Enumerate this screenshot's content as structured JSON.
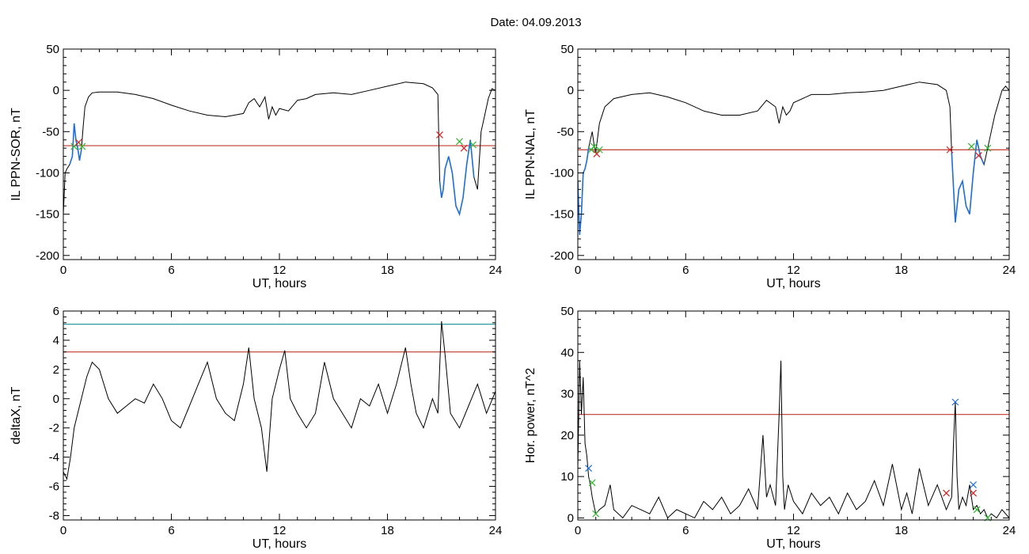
{
  "figure": {
    "title": "Date:  04.09.2013"
  },
  "colors": {
    "trace": "#000000",
    "highlight": "#1f6fd6",
    "threshold_red": "#c0392b",
    "threshold_teal": "#2a9d9a",
    "marker_green": "#2eb82e",
    "marker_red": "#d62020",
    "marker_blue": "#1f6fd6"
  },
  "chart_data": [
    {
      "type": "line",
      "id": "il-sor",
      "xlabel": "UT, hours",
      "ylabel": "IL PPN-SOR, nT",
      "xlim": [
        0,
        24
      ],
      "ylim": [
        -205,
        50
      ],
      "xticks": [
        0,
        6,
        12,
        18,
        24
      ],
      "yticks": [
        -200,
        -150,
        -100,
        -50,
        0,
        50
      ],
      "series": [
        {
          "role": "trace",
          "x": [
            0,
            0.1,
            0.2,
            0.35,
            0.5,
            0.6,
            0.7,
            0.8,
            0.9,
            1.0,
            1.1,
            1.2,
            1.4,
            1.6,
            2.0,
            3.0,
            4.0,
            5.0,
            6.0,
            7.0,
            8.0,
            9.0,
            9.5,
            10.0,
            10.3,
            10.6,
            10.9,
            11.2,
            11.4,
            11.6,
            11.8,
            12.0,
            12.5,
            13.0,
            13.5,
            14.0,
            15.0,
            16.0,
            17.0,
            18.0,
            19.0,
            20.0,
            20.5,
            20.8,
            20.9,
            21.0,
            21.1,
            21.2,
            21.4,
            21.6,
            21.8,
            22.0,
            22.2,
            22.4,
            22.6,
            22.8,
            23.0,
            23.2,
            23.4,
            23.6,
            23.8,
            24.0
          ],
          "y": [
            -150,
            -100,
            -95,
            -90,
            -80,
            -40,
            -60,
            -70,
            -85,
            -72,
            -45,
            -20,
            -8,
            -3,
            -2,
            -2,
            -5,
            -10,
            -18,
            -25,
            -30,
            -32,
            -30,
            -28,
            -15,
            -10,
            -20,
            -8,
            -35,
            -20,
            -30,
            -22,
            -25,
            -12,
            -10,
            -5,
            -3,
            -5,
            0,
            5,
            10,
            8,
            3,
            -5,
            -110,
            -130,
            -120,
            -95,
            -80,
            -100,
            -140,
            -150,
            -130,
            -90,
            -60,
            -105,
            -120,
            -50,
            -30,
            -10,
            2,
            0
          ]
        },
        {
          "role": "highlight",
          "x": [
            0.35,
            0.5,
            0.6,
            0.7,
            0.8,
            0.9,
            1.0
          ],
          "y": [
            -90,
            -80,
            -40,
            -60,
            -70,
            -85,
            -72
          ]
        },
        {
          "role": "highlight",
          "x": [
            20.9,
            21.0,
            21.1,
            21.2,
            21.4,
            21.6,
            21.8,
            22.0,
            22.2,
            22.4,
            22.6,
            22.8
          ],
          "y": [
            -110,
            -130,
            -120,
            -95,
            -80,
            -100,
            -140,
            -150,
            -130,
            -90,
            -60,
            -105
          ]
        }
      ],
      "hlines": [
        {
          "y": -67,
          "color": "threshold_red"
        }
      ],
      "markers": [
        {
          "x": 0.6,
          "y": -68,
          "color": "marker_green"
        },
        {
          "x": 0.85,
          "y": -63,
          "color": "marker_red"
        },
        {
          "x": 1.05,
          "y": -68,
          "color": "marker_green"
        },
        {
          "x": 20.9,
          "y": -54,
          "color": "marker_red"
        },
        {
          "x": 22.0,
          "y": -62,
          "color": "marker_green"
        },
        {
          "x": 22.25,
          "y": -70,
          "color": "marker_red"
        },
        {
          "x": 22.75,
          "y": -66,
          "color": "marker_green"
        }
      ]
    },
    {
      "type": "line",
      "id": "il-nal",
      "xlabel": "UT, hours",
      "ylabel": "IL PPN-NAL, nT",
      "xlim": [
        0,
        24
      ],
      "ylim": [
        -205,
        50
      ],
      "xticks": [
        0,
        6,
        12,
        18,
        24
      ],
      "yticks": [
        -200,
        -150,
        -100,
        -50,
        0,
        50
      ],
      "series": [
        {
          "role": "trace",
          "x": [
            0,
            0.1,
            0.2,
            0.3,
            0.4,
            0.5,
            0.6,
            0.7,
            0.8,
            0.9,
            1.0,
            1.2,
            1.5,
            2.0,
            3.0,
            4.0,
            5.0,
            6.0,
            7.0,
            8.0,
            9.0,
            10.0,
            10.5,
            11.0,
            11.2,
            11.4,
            11.6,
            11.8,
            12.0,
            13.0,
            14.0,
            15.0,
            16.0,
            17.0,
            18.0,
            19.0,
            20.0,
            20.5,
            20.7,
            20.8,
            21.0,
            21.2,
            21.4,
            21.6,
            21.8,
            22.0,
            22.2,
            22.4,
            22.6,
            22.8,
            23.0,
            23.2,
            23.4,
            23.6,
            23.8,
            24.0
          ],
          "y": [
            -110,
            -175,
            -150,
            -100,
            -95,
            -85,
            -70,
            -60,
            -50,
            -65,
            -75,
            -40,
            -20,
            -10,
            -5,
            -3,
            -8,
            -15,
            -25,
            -30,
            -30,
            -25,
            -12,
            -20,
            -40,
            -20,
            -30,
            -25,
            -15,
            -5,
            -5,
            -3,
            -2,
            0,
            5,
            10,
            7,
            0,
            -20,
            -75,
            -160,
            -120,
            -110,
            -140,
            -150,
            -100,
            -60,
            -80,
            -90,
            -70,
            -50,
            -30,
            -15,
            0,
            5,
            0
          ]
        },
        {
          "role": "highlight",
          "x": [
            0,
            0.1,
            0.2,
            0.3,
            0.4,
            0.5,
            0.6
          ],
          "y": [
            -110,
            -175,
            -150,
            -100,
            -95,
            -85,
            -70
          ]
        },
        {
          "role": "highlight",
          "x": [
            20.8,
            21.0,
            21.2,
            21.4,
            21.6,
            21.8,
            22.0,
            22.2,
            22.4,
            22.6
          ],
          "y": [
            -75,
            -160,
            -120,
            -110,
            -140,
            -150,
            -100,
            -60,
            -80,
            -90
          ]
        }
      ],
      "hlines": [
        {
          "y": -72,
          "color": "threshold_red"
        }
      ],
      "markers": [
        {
          "x": 0.75,
          "y": -72,
          "color": "marker_green"
        },
        {
          "x": 0.9,
          "y": -68,
          "color": "marker_green"
        },
        {
          "x": 1.05,
          "y": -77,
          "color": "marker_red"
        },
        {
          "x": 1.2,
          "y": -72,
          "color": "marker_green"
        },
        {
          "x": 20.7,
          "y": -72,
          "color": "marker_red"
        },
        {
          "x": 21.9,
          "y": -68,
          "color": "marker_green"
        },
        {
          "x": 22.3,
          "y": -79,
          "color": "marker_red"
        },
        {
          "x": 22.8,
          "y": -70,
          "color": "marker_green"
        }
      ]
    },
    {
      "type": "line",
      "id": "deltax",
      "xlabel": "UT, hours",
      "ylabel": "deltaX, nT",
      "xlim": [
        0,
        24
      ],
      "ylim": [
        -8.3,
        6
      ],
      "xticks": [
        0,
        6,
        12,
        18,
        24
      ],
      "yticks": [
        -8,
        -6,
        -4,
        -2,
        0,
        2,
        4,
        6
      ],
      "series": [
        {
          "role": "trace",
          "x": [
            0,
            0.2,
            0.4,
            0.6,
            0.8,
            1.0,
            1.3,
            1.6,
            2.0,
            2.5,
            3.0,
            3.5,
            4.0,
            4.5,
            5.0,
            5.5,
            6.0,
            6.5,
            7.0,
            7.5,
            8.0,
            8.5,
            9.0,
            9.5,
            10.0,
            10.3,
            10.6,
            11.0,
            11.3,
            11.6,
            12.0,
            12.3,
            12.6,
            13.0,
            13.5,
            14.0,
            14.5,
            15.0,
            15.5,
            16.0,
            16.5,
            17.0,
            17.5,
            18.0,
            18.5,
            19.0,
            19.3,
            19.6,
            20.0,
            20.5,
            20.8,
            21.0,
            21.2,
            21.5,
            22.0,
            22.5,
            23.0,
            23.5,
            24.0
          ],
          "y": [
            -5,
            -5.5,
            -4,
            -2,
            -1,
            0,
            1.5,
            2.5,
            2,
            0,
            -1,
            -0.5,
            0,
            -0.3,
            1,
            0,
            -1.5,
            -2,
            -0.5,
            1,
            2.5,
            0,
            -1,
            -1.5,
            1,
            3.5,
            0,
            -2,
            -5,
            0,
            2,
            3.3,
            0,
            -1,
            -2,
            -1,
            2.5,
            0,
            -1,
            -2,
            0,
            -0.5,
            1,
            -1,
            1,
            3.5,
            1,
            -1,
            -2,
            0,
            -1,
            5.3,
            3,
            -1,
            -2,
            -0.5,
            1,
            -1,
            0.5
          ]
        }
      ],
      "hlines": [
        {
          "y": 5.1,
          "color": "threshold_teal"
        },
        {
          "y": 3.2,
          "color": "threshold_red"
        }
      ],
      "markers": []
    },
    {
      "type": "line",
      "id": "hor-power",
      "xlabel": "UT, hours",
      "ylabel": "Hor. power, nT^2",
      "xlim": [
        0,
        24
      ],
      "ylim": [
        -0.5,
        50
      ],
      "xticks": [
        0,
        6,
        12,
        18,
        24
      ],
      "yticks": [
        0,
        10,
        20,
        30,
        40,
        50
      ],
      "series": [
        {
          "role": "trace",
          "x": [
            0,
            0.1,
            0.2,
            0.3,
            0.4,
            0.5,
            0.6,
            0.7,
            0.8,
            0.9,
            1.0,
            1.2,
            1.5,
            1.8,
            2.0,
            2.5,
            3.0,
            3.5,
            4.0,
            4.5,
            5.0,
            5.5,
            6.0,
            6.5,
            7.0,
            7.5,
            8.0,
            8.5,
            9.0,
            9.5,
            10.0,
            10.3,
            10.5,
            10.7,
            11.0,
            11.2,
            11.3,
            11.4,
            11.5,
            11.7,
            12.0,
            12.5,
            13.0,
            13.5,
            14.0,
            14.5,
            15.0,
            15.5,
            16.0,
            16.5,
            17.0,
            17.5,
            18.0,
            18.3,
            18.6,
            19.0,
            19.5,
            20.0,
            20.5,
            20.8,
            20.9,
            21.0,
            21.1,
            21.2,
            21.4,
            21.6,
            21.8,
            22.0,
            22.2,
            22.4,
            22.6,
            22.8,
            23.0,
            23.3,
            23.6,
            24.0
          ],
          "y": [
            12,
            38,
            25,
            34,
            18,
            15,
            10,
            8,
            5,
            3,
            1,
            2,
            3,
            8,
            2,
            0,
            3,
            2,
            1,
            5,
            0,
            2,
            1,
            0,
            4,
            2,
            5,
            1,
            3,
            7,
            2,
            20,
            5,
            8,
            3,
            25,
            38,
            10,
            2,
            8,
            4,
            1,
            6,
            3,
            5,
            1,
            6,
            2,
            4,
            9,
            3,
            13,
            2,
            6,
            1,
            12,
            3,
            8,
            2,
            5,
            18,
            28,
            10,
            2,
            5,
            3,
            8,
            2,
            3,
            1,
            2,
            0,
            1,
            0,
            2,
            0
          ]
        }
      ],
      "hlines": [
        {
          "y": 25,
          "color": "threshold_red"
        }
      ],
      "markers": [
        {
          "x": 0.6,
          "y": 12,
          "color": "marker_blue"
        },
        {
          "x": 0.8,
          "y": 8.5,
          "color": "marker_green"
        },
        {
          "x": 1.0,
          "y": 1,
          "color": "marker_green"
        },
        {
          "x": 20.5,
          "y": 6,
          "color": "marker_red"
        },
        {
          "x": 21.0,
          "y": 28,
          "color": "marker_blue"
        },
        {
          "x": 22.0,
          "y": 8,
          "color": "marker_blue"
        },
        {
          "x": 22.0,
          "y": 6,
          "color": "marker_red"
        },
        {
          "x": 22.2,
          "y": 2,
          "color": "marker_green"
        },
        {
          "x": 22.8,
          "y": 0,
          "color": "marker_green"
        }
      ]
    }
  ]
}
